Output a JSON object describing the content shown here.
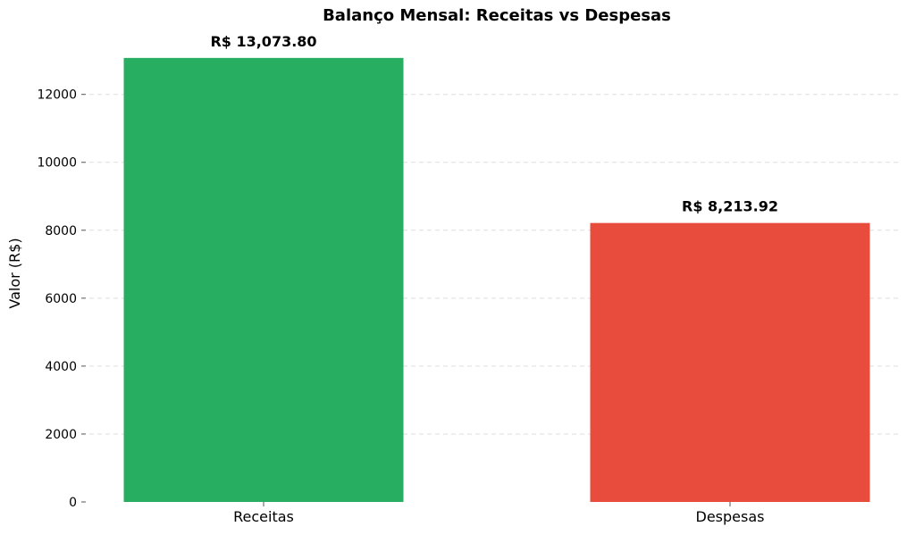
{
  "chart_data": {
    "type": "bar",
    "title": "Balanço Mensal: Receitas vs Despesas",
    "xlabel": "",
    "ylabel": "Valor (R$)",
    "categories": [
      "Receitas",
      "Despesas"
    ],
    "values": [
      13073.8,
      8213.92
    ],
    "value_labels": [
      "R$ 13,073.80",
      "R$ 8,213.92"
    ],
    "colors": [
      "#27ae60",
      "#e74c3c"
    ],
    "ylim": [
      0,
      13727.49
    ],
    "yticks": [
      0,
      2000,
      4000,
      6000,
      8000,
      10000,
      12000
    ],
    "grid": true,
    "grid_axis": "y",
    "legend": "none"
  }
}
